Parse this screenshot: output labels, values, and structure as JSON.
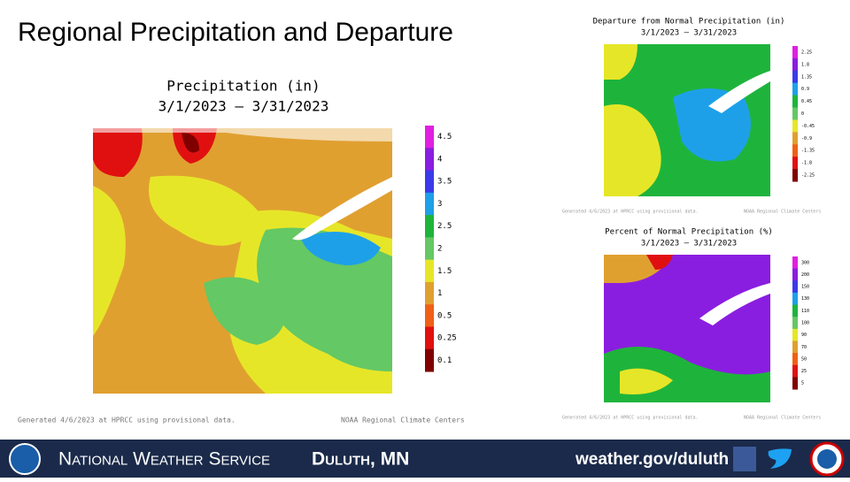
{
  "header": {
    "title": "Regional Precipitation and Departure"
  },
  "maps": [
    {
      "title": "Precipitation (in)",
      "subtitle": "3/1/2023 – 3/31/2023",
      "legend_labels": [
        "4.5",
        "4",
        "3.5",
        "3",
        "2.5",
        "2",
        "1.5",
        "1",
        "0.5",
        "0.25",
        "0.1"
      ],
      "legend_colors": [
        "#e020e0",
        "#8a1ee0",
        "#3a3ae8",
        "#1ea0e8",
        "#1eb43c",
        "#64c864",
        "#e6e628",
        "#e0a030",
        "#f06018",
        "#e01010",
        "#800000"
      ],
      "footer_left": "Generated 4/6/2023 at HPRCC using provisional data.",
      "footer_right": "NOAA Regional Climate Centers"
    },
    {
      "title": "Departure from Normal Precipitation (in)",
      "subtitle": "3/1/2023 – 3/31/2023",
      "legend_labels": [
        "2.25",
        "1.8",
        "1.35",
        "0.9",
        "0.45",
        "0",
        "-0.45",
        "-0.9",
        "-1.35",
        "-1.8",
        "-2.25"
      ],
      "legend_colors": [
        "#e020e0",
        "#8a1ee0",
        "#3a3ae8",
        "#1ea0e8",
        "#1eb43c",
        "#64c864",
        "#e6e628",
        "#e0a030",
        "#f06018",
        "#e01010",
        "#800000"
      ],
      "footer_left": "Generated 4/6/2023 at HPRCC using provisional data.",
      "footer_right": "NOAA Regional Climate Centers"
    },
    {
      "title": "Percent of Normal Precipitation (%)",
      "subtitle": "3/1/2023 – 3/31/2023",
      "legend_labels": [
        "300",
        "200",
        "150",
        "130",
        "110",
        "100",
        "90",
        "70",
        "50",
        "25",
        "5"
      ],
      "legend_colors": [
        "#e020e0",
        "#8a1ee0",
        "#3a3ae8",
        "#1ea0e8",
        "#1eb43c",
        "#64c864",
        "#e6e628",
        "#e0a030",
        "#f06018",
        "#e01010",
        "#800000"
      ],
      "footer_left": "Generated 4/6/2023 at HPRCC using provisional data.",
      "footer_right": "NOAA Regional Climate Centers"
    }
  ],
  "banner": {
    "agency": "National Weather Service",
    "office": "Duluth, MN",
    "url": "weather.gov/duluth"
  }
}
